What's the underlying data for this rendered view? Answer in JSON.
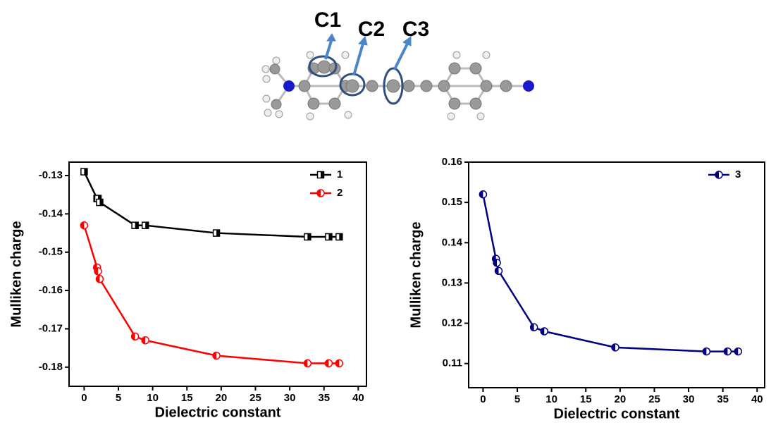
{
  "molecule": {
    "labels": [
      "C1",
      "C2",
      "C3"
    ]
  },
  "chart_data": [
    {
      "type": "line",
      "xlabel": "Dielectric constant",
      "ylabel": "Mulliken charge",
      "x": [
        0,
        1.88,
        2.02,
        2.27,
        7.43,
        8.93,
        19.3,
        32.6,
        35.69,
        37.22
      ],
      "series": [
        {
          "name": "1",
          "color": "#000000",
          "marker": "square",
          "values": [
            -0.129,
            -0.136,
            -0.136,
            -0.137,
            -0.143,
            -0.143,
            -0.145,
            -0.146,
            -0.146,
            -0.146
          ]
        },
        {
          "name": "2",
          "color": "#ff0000",
          "marker": "circle",
          "values": [
            -0.143,
            -0.154,
            -0.155,
            -0.157,
            -0.172,
            -0.173,
            -0.177,
            -0.179,
            -0.179,
            -0.179
          ]
        }
      ],
      "xlim": [
        -2.2,
        41.2
      ],
      "xticks": [
        0,
        5,
        10,
        15,
        20,
        25,
        30,
        35,
        40
      ],
      "ylim": [
        -0.185,
        -0.1265
      ],
      "yticks": [
        -0.18,
        -0.17,
        -0.16,
        -0.15,
        -0.14,
        -0.13
      ],
      "legend": "upper right"
    },
    {
      "type": "line",
      "xlabel": "Dielectric constant",
      "ylabel": "Mulliken charge",
      "x": [
        0,
        1.88,
        2.02,
        2.27,
        7.43,
        8.93,
        19.3,
        32.6,
        35.69,
        37.22
      ],
      "series": [
        {
          "name": "3",
          "color": "#000080",
          "marker": "circle",
          "values": [
            0.152,
            0.136,
            0.135,
            0.133,
            0.119,
            0.118,
            0.114,
            0.113,
            0.113,
            0.113
          ]
        }
      ],
      "xlim": [
        -2.1,
        41.1
      ],
      "xticks": [
        0,
        5,
        10,
        15,
        20,
        25,
        30,
        35,
        40
      ],
      "ylim": [
        0.104,
        0.16
      ],
      "yticks": [
        0.11,
        0.12,
        0.13,
        0.14,
        0.15,
        0.16
      ],
      "legend": "upper right"
    }
  ]
}
